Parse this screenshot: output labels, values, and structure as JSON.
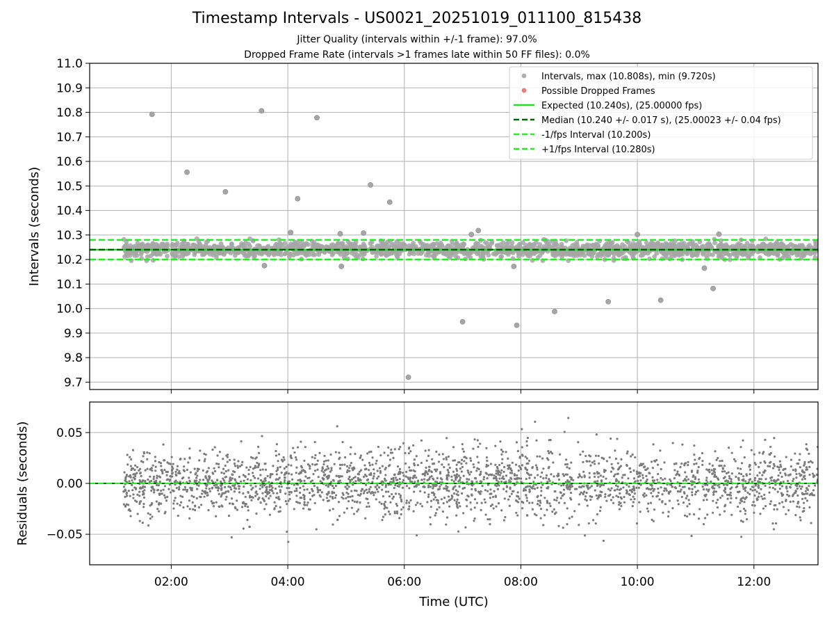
{
  "chart_data": [
    {
      "type": "scatter",
      "title": "Timestamp Intervals - US0021_20251019_011100_815438",
      "subtitles": [
        "Jitter Quality (intervals within +/-1 frame): 97.0%",
        "Dropped Frame Rate (intervals >1 frames late within 50 FF files): 0.0%"
      ],
      "xlabel": "Time (UTC)",
      "ylabel": "Intervals (seconds)",
      "x_unit": "hours UTC",
      "xlim": [
        0.6,
        13.1
      ],
      "ylim": [
        9.67,
        11.0
      ],
      "x_ticks": [
        {
          "value": 2,
          "label": "02:00"
        },
        {
          "value": 4,
          "label": "04:00"
        },
        {
          "value": 6,
          "label": "06:00"
        },
        {
          "value": 8,
          "label": "08:00"
        },
        {
          "value": 10,
          "label": "10:00"
        },
        {
          "value": 12,
          "label": "12:00"
        }
      ],
      "y_ticks": [
        {
          "value": 9.7,
          "label": "9.7"
        },
        {
          "value": 9.8,
          "label": "9.8"
        },
        {
          "value": 9.9,
          "label": "9.9"
        },
        {
          "value": 10.0,
          "label": "10.0"
        },
        {
          "value": 10.1,
          "label": "10.1"
        },
        {
          "value": 10.2,
          "label": "10.2"
        },
        {
          "value": 10.3,
          "label": "10.3"
        },
        {
          "value": 10.4,
          "label": "10.4"
        },
        {
          "value": 10.5,
          "label": "10.5"
        },
        {
          "value": 10.6,
          "label": "10.6"
        },
        {
          "value": 10.7,
          "label": "10.7"
        },
        {
          "value": 10.8,
          "label": "10.8"
        },
        {
          "value": 10.9,
          "label": "10.9"
        },
        {
          "value": 11.0,
          "label": "11.0"
        }
      ],
      "grid": true,
      "legend_position": "top-right",
      "bulk_band": {
        "x_range": [
          1.18,
          13.1
        ],
        "y_center": 10.24,
        "y_spread": 0.028
      },
      "outliers": [
        {
          "x": 1.67,
          "y": 10.792
        },
        {
          "x": 2.27,
          "y": 10.556
        },
        {
          "x": 2.93,
          "y": 10.476
        },
        {
          "x": 3.55,
          "y": 10.806
        },
        {
          "x": 4.17,
          "y": 10.448
        },
        {
          "x": 4.5,
          "y": 10.778
        },
        {
          "x": 5.42,
          "y": 10.504
        },
        {
          "x": 5.75,
          "y": 10.434
        },
        {
          "x": 6.07,
          "y": 9.72
        },
        {
          "x": 7.0,
          "y": 9.946
        },
        {
          "x": 7.93,
          "y": 9.932
        },
        {
          "x": 8.58,
          "y": 9.988
        },
        {
          "x": 9.5,
          "y": 10.028
        },
        {
          "x": 10.4,
          "y": 10.034
        },
        {
          "x": 11.3,
          "y": 10.082
        },
        {
          "x": 11.15,
          "y": 10.165
        },
        {
          "x": 4.05,
          "y": 10.31
        },
        {
          "x": 7.27,
          "y": 10.318
        },
        {
          "x": 7.15,
          "y": 10.302
        },
        {
          "x": 10.0,
          "y": 10.302
        },
        {
          "x": 5.3,
          "y": 10.308
        },
        {
          "x": 4.9,
          "y": 10.305
        },
        {
          "x": 11.4,
          "y": 10.303
        },
        {
          "x": 7.88,
          "y": 10.172
        },
        {
          "x": 4.92,
          "y": 10.172
        },
        {
          "x": 3.6,
          "y": 10.175
        }
      ],
      "series": [
        {
          "name": "Intervals, max (10.808s), min (9.720s)",
          "color": "#a6a6a6",
          "style": "marker"
        },
        {
          "name": "Possible Dropped Frames",
          "color": "#ef6a6a",
          "style": "marker"
        },
        {
          "name": "Expected (10.240s), (25.00000 fps)",
          "value": 10.24,
          "color": "#22dd22",
          "style": "solid"
        },
        {
          "name": "Median (10.240 +/- 0.017 s), (25.00023 +/- 0.04 fps)",
          "value": 10.24,
          "color": "#006400",
          "style": "dashed"
        },
        {
          "name": "-1/fps Interval (10.200s)",
          "value": 10.2,
          "color": "#22ee22",
          "style": "dashed"
        },
        {
          "name": "+1/fps Interval (10.280s)",
          "value": 10.28,
          "color": "#22ee22",
          "style": "dashed"
        }
      ]
    },
    {
      "type": "scatter",
      "xlabel": "Time (UTC)",
      "ylabel": "Residuals (seconds)",
      "xlim": [
        0.6,
        13.1
      ],
      "ylim": [
        -0.08,
        0.08
      ],
      "y_ticks": [
        {
          "value": 0.05,
          "label": "0.05"
        },
        {
          "value": 0.0,
          "label": "0.00"
        },
        {
          "value": -0.05,
          "label": "−0.05"
        }
      ],
      "grid": true,
      "bulk": {
        "x_range": [
          1.18,
          13.1
        ],
        "y_center": 0.0,
        "y_std": 0.017,
        "color": "#7a7a7a"
      },
      "reference_line": {
        "value": 0.0,
        "color": "#22ee22",
        "style": "dashed"
      }
    }
  ]
}
